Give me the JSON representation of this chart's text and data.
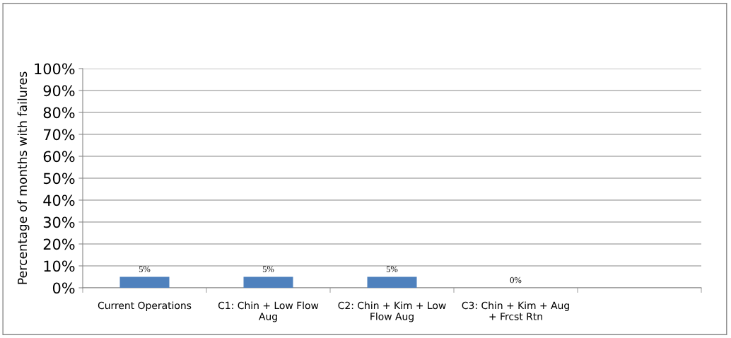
{
  "chart_data": {
    "type": "bar",
    "ylabel": "Percentage of months with failures",
    "categories": [
      "Current Operations",
      "C1: Chin + Low Flow Aug",
      "C2: Chin + Kim + Low Flow Aug",
      "C3: Chin + Kim + Aug + Frcst Rtn",
      null
    ],
    "values": [
      5,
      5,
      5,
      0,
      null
    ],
    "color": "#4f81bd",
    "value_labels": [
      "5%",
      "5%",
      "5%",
      "0%",
      null
    ],
    "ylim": [
      0,
      100
    ],
    "yticks": [
      {
        "value": 0,
        "label": "0%"
      },
      {
        "value": 10,
        "label": "10%"
      },
      {
        "value": 20,
        "label": "20%"
      },
      {
        "value": 30,
        "label": "30%"
      },
      {
        "value": 40,
        "label": "40%"
      },
      {
        "value": 50,
        "label": "50%"
      },
      {
        "value": 60,
        "label": "60%"
      },
      {
        "value": 70,
        "label": "70%"
      },
      {
        "value": 80,
        "label": "80%"
      },
      {
        "value": 90,
        "label": "90%"
      },
      {
        "value": 100,
        "label": "100%"
      }
    ],
    "grid": "y",
    "legend": false
  }
}
